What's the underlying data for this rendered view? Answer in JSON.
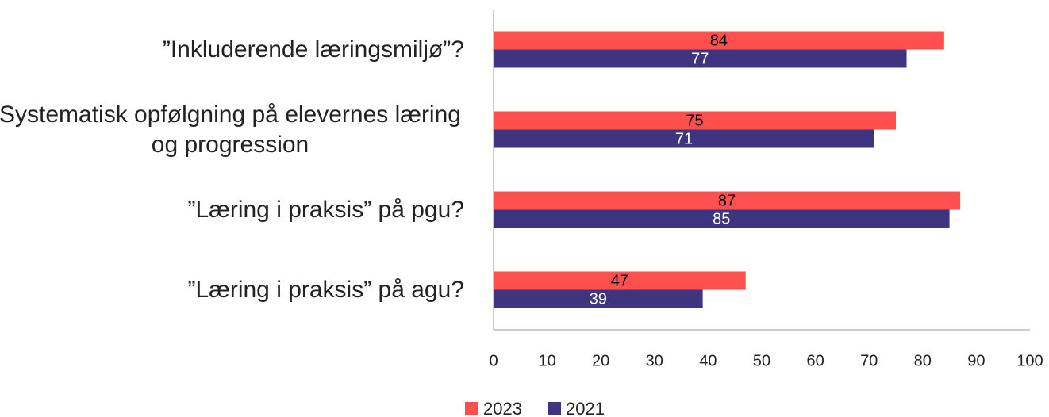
{
  "chart_data": {
    "type": "barh",
    "categories": [
      "”Inkluderende læringsmiljø”?",
      "Systematisk opfølgning på elevernes læring og progression",
      "”Læring i praksis” på pgu?",
      "”Læring i praksis” på agu?"
    ],
    "series": [
      {
        "name": "2023",
        "color": "#ff5050",
        "label_color": "#000000",
        "values": [
          84,
          75,
          87,
          47
        ]
      },
      {
        "name": "2021",
        "color": "#3f3480",
        "label_color": "#ffffff",
        "values": [
          77,
          71,
          85,
          39
        ]
      }
    ],
    "xlim": [
      0,
      100
    ],
    "xticks": [
      0,
      10,
      20,
      30,
      40,
      50,
      60,
      70,
      80,
      90,
      100
    ],
    "grid": false
  }
}
